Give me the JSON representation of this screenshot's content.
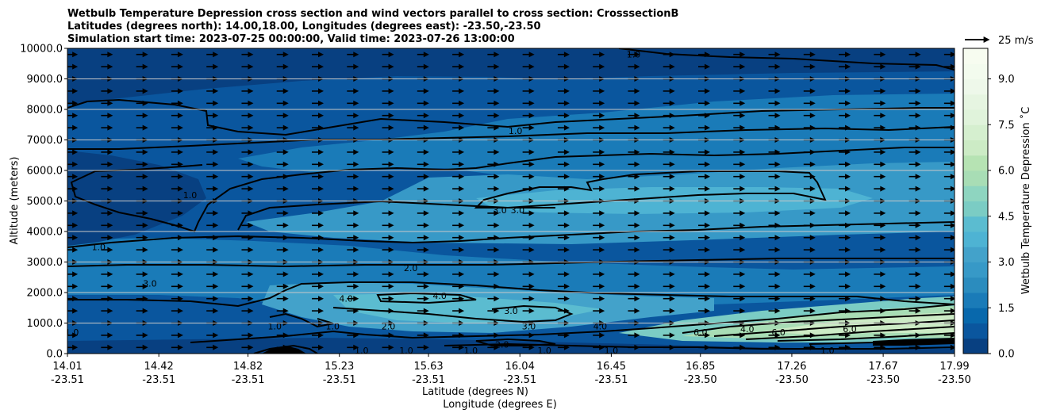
{
  "chart_data": {
    "type": "contourf",
    "title_lines": [
      "Wetbulb Temperature Depression cross section and wind vectors parallel to cross section: CrosssectionB",
      "Latitudes (degrees north): 14.00,18.00, Longitudes (degrees east): -23.50,-23.50",
      "Simulation start time: 2023-07-25 00:00:00, Valid time: 2023-07-26 13:00:00"
    ],
    "ylabel": "Altitude (meters)",
    "xlabel_lines": [
      "Latitude (degrees N)",
      "Longitude (degrees E)"
    ],
    "ylim": [
      0,
      10000
    ],
    "y_ticks": [
      "0.0",
      "1000.0",
      "2000.0",
      "3000.0",
      "4000.0",
      "5000.0",
      "6000.0",
      "7000.0",
      "8000.0",
      "9000.0",
      "10000.0"
    ],
    "x_range": [
      14.01,
      17.99
    ],
    "x_ticks": [
      {
        "lat": "14.01",
        "lon": "-23.51"
      },
      {
        "lat": "14.42",
        "lon": "-23.51"
      },
      {
        "lat": "14.82",
        "lon": "-23.51"
      },
      {
        "lat": "15.23",
        "lon": "-23.51"
      },
      {
        "lat": "15.63",
        "lon": "-23.51"
      },
      {
        "lat": "16.04",
        "lon": "-23.51"
      },
      {
        "lat": "16.45",
        "lon": "-23.51"
      },
      {
        "lat": "16.85",
        "lon": "-23.50"
      },
      {
        "lat": "17.26",
        "lon": "-23.50"
      },
      {
        "lat": "17.67",
        "lon": "-23.50"
      },
      {
        "lat": "17.99",
        "lon": "-23.50"
      }
    ],
    "grid": "horizontal",
    "colorbar": {
      "label": "Wetbulb Temperature Depression ˚C",
      "min": 0,
      "max": 10,
      "ticks": [
        "0.0",
        "1.5",
        "3.0",
        "4.5",
        "6.0",
        "7.5",
        "9.0"
      ],
      "levels": [
        0,
        0.5,
        1,
        1.5,
        2,
        2.5,
        3,
        3.5,
        4,
        4.5,
        5,
        5.5,
        6,
        6.5,
        7,
        7.5,
        8,
        8.5,
        9,
        9.5,
        10
      ],
      "colors": [
        "#084081",
        "#0a569e",
        "#0868ac",
        "#1a7bb8",
        "#2b8cbe",
        "#3799c7",
        "#43a2ca",
        "#4eb3d3",
        "#5bbcd0",
        "#7bccc4",
        "#8ed5c0",
        "#a8ddb5",
        "#b6e3b3",
        "#ccebc5",
        "#d5efcf",
        "#e0f3db",
        "#e6f5e1",
        "#eef8ea",
        "#f3fbee",
        "#f7fcf0"
      ]
    },
    "quiver_key": {
      "label": "25 m/s",
      "speed": 25
    },
    "wind_direction": "parallel, left to right",
    "contour_labels": [
      {
        "text": "1.0",
        "x": 14.03,
        "y": 700
      },
      {
        "text": "1.0",
        "x": 14.15,
        "y": 3500
      },
      {
        "text": "3.0",
        "x": 14.38,
        "y": 2300
      },
      {
        "text": "1.0",
        "x": 14.56,
        "y": 5200
      },
      {
        "text": "1.0",
        "x": 14.94,
        "y": 900
      },
      {
        "text": "1.0",
        "x": 15.2,
        "y": 900
      },
      {
        "text": "4.0",
        "x": 15.26,
        "y": 1800
      },
      {
        "text": "1.0",
        "x": 15.33,
        "y": 100
      },
      {
        "text": "2.0",
        "x": 15.45,
        "y": 900
      },
      {
        "text": "1.0",
        "x": 15.53,
        "y": 100
      },
      {
        "text": "2.0",
        "x": 15.55,
        "y": 2800
      },
      {
        "text": "4.0",
        "x": 15.68,
        "y": 1900
      },
      {
        "text": "1.0",
        "x": 15.82,
        "y": 100
      },
      {
        "text": "3.0",
        "x": 15.95,
        "y": 4700
      },
      {
        "text": "3.0",
        "x": 16.03,
        "y": 4700
      },
      {
        "text": "2.0",
        "x": 15.96,
        "y": 300
      },
      {
        "text": "3.0",
        "x": 16.0,
        "y": 1400
      },
      {
        "text": "1.0",
        "x": 16.02,
        "y": 7300
      },
      {
        "text": "3.0",
        "x": 16.08,
        "y": 900
      },
      {
        "text": "1.0",
        "x": 16.15,
        "y": 100
      },
      {
        "text": "4.0",
        "x": 16.4,
        "y": 900
      },
      {
        "text": "1.0",
        "x": 16.45,
        "y": 100
      },
      {
        "text": "1.0",
        "x": 16.55,
        "y": 9800
      },
      {
        "text": "6.0",
        "x": 16.85,
        "y": 700
      },
      {
        "text": "4.0",
        "x": 17.06,
        "y": 800
      },
      {
        "text": "6.0",
        "x": 17.2,
        "y": 700
      },
      {
        "text": "1.0",
        "x": 17.42,
        "y": 100
      },
      {
        "text": "6.0",
        "x": 17.52,
        "y": 800
      }
    ]
  }
}
